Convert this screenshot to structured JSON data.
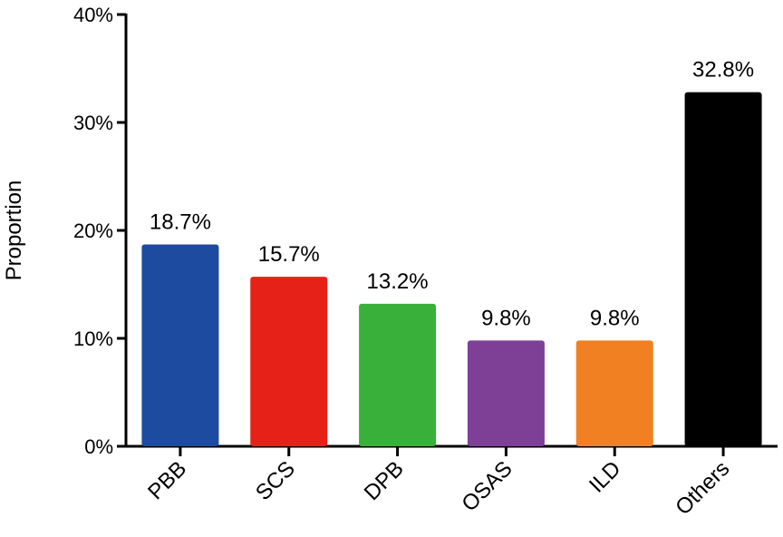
{
  "chart_data": {
    "type": "bar",
    "title": "",
    "xlabel": "",
    "ylabel": "Proportion",
    "ylim": [
      0,
      40
    ],
    "yticks": [
      0,
      10,
      20,
      30,
      40
    ],
    "ytick_labels": [
      "0%",
      "10%",
      "20%",
      "30%",
      "40%"
    ],
    "categories": [
      "PBB",
      "SCS",
      "DPB",
      "OSAS",
      "ILD",
      "Others"
    ],
    "values": [
      18.7,
      15.7,
      13.2,
      9.8,
      9.8,
      32.8
    ],
    "value_labels": [
      "18.7%",
      "15.7%",
      "13.2%",
      "9.8%",
      "9.8%",
      "32.8%"
    ],
    "colors": [
      "#1c4ba0",
      "#e62117",
      "#39b03a",
      "#7e3f97",
      "#f08021",
      "#000000"
    ],
    "grid": false,
    "legend": "none"
  }
}
